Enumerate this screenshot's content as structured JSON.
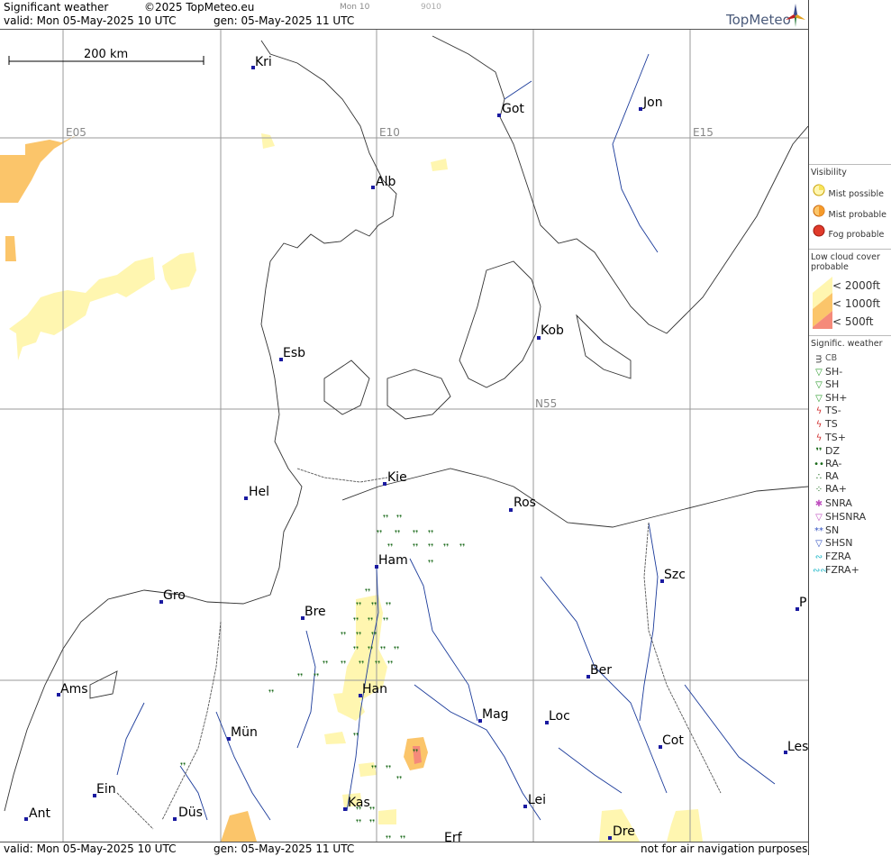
{
  "header": {
    "product": "Significant weather",
    "copyright": "©2025 TopMeteo.eu",
    "valid_line": "valid:  Mon  05-May-2025  10 UTC",
    "gen_line": "gen: 05-May-2025 11 UTC",
    "code_day": "Mon 10",
    "code_num": "9010",
    "brand": "TopMeteo"
  },
  "footer": {
    "valid_line": "valid:  Mon  05-May-2025  10 UTC",
    "gen_line": "gen: 05-May-2025 11 UTC",
    "disclaimer": "not for air navigation purposes"
  },
  "map": {
    "scale_label": "200 km",
    "grid_labels": [
      "E05",
      "E10",
      "E15",
      "N55"
    ],
    "cities": [
      "Kri",
      "Got",
      "Jon",
      "Alb",
      "Kob",
      "Esb",
      "Kie",
      "Hel",
      "Ros",
      "Ham",
      "Szc",
      "Gro",
      "Bre",
      "P",
      "Ber",
      "Ams",
      "Han",
      "Mag",
      "Loc",
      "Mün",
      "Cot",
      "Les",
      "Ein",
      "Kas",
      "Lei",
      "Ant",
      "Düs",
      "Dre",
      "Erf"
    ]
  },
  "legend": {
    "visibility": {
      "title": "Visibility",
      "items": [
        {
          "label": "Mist possible",
          "color": "#f7e35a"
        },
        {
          "label": "Mist probable",
          "color": "#f59a2a"
        },
        {
          "label": "Fog probable",
          "color": "#e03a2a"
        }
      ]
    },
    "low_cloud": {
      "title_line1": "Low cloud cover",
      "title_line2": "probable",
      "items": [
        {
          "label": "< 2000ft",
          "color": "#fff6b0"
        },
        {
          "label": "< 1000ft",
          "color": "#fbc56a"
        },
        {
          "label": "<   500ft",
          "color": "#f58a7a"
        }
      ]
    },
    "sigwx": {
      "title": "Signific. weather",
      "items": [
        {
          "label": "CB",
          "icon": "cb-icon",
          "color": "#333333"
        },
        {
          "label": "SH-",
          "icon": "shower-light-icon",
          "color": "#2a9a2a"
        },
        {
          "label": "SH",
          "icon": "shower-icon",
          "color": "#2a9a2a"
        },
        {
          "label": "SH+",
          "icon": "shower-heavy-icon",
          "color": "#2a9a2a"
        },
        {
          "label": "TS-",
          "icon": "thunderstorm-light-icon",
          "color": "#d23030"
        },
        {
          "label": "TS",
          "icon": "thunderstorm-icon",
          "color": "#d23030"
        },
        {
          "label": "TS+",
          "icon": "thunderstorm-heavy-icon",
          "color": "#d23030"
        },
        {
          "label": "DZ",
          "icon": "drizzle-icon",
          "color": "#1a6a1a"
        },
        {
          "label": "RA-",
          "icon": "rain-light-icon",
          "color": "#1a6a1a"
        },
        {
          "label": "RA",
          "icon": "rain-icon",
          "color": "#1a6a1a"
        },
        {
          "label": "RA+",
          "icon": "rain-heavy-icon",
          "color": "#1a6a1a"
        },
        {
          "label": "SNRA",
          "icon": "sleet-icon",
          "color": "#c050c0"
        },
        {
          "label": "SHSNRA",
          "icon": "sleet-shower-icon",
          "color": "#c050c0"
        },
        {
          "label": "SN",
          "icon": "snow-icon",
          "color": "#3050c0"
        },
        {
          "label": "SHSN",
          "icon": "snow-shower-icon",
          "color": "#3050c0"
        },
        {
          "label": "FZRA",
          "icon": "freezing-rain-icon",
          "color": "#20b8c8"
        },
        {
          "label": "FZRA+",
          "icon": "freezing-rain-heavy-icon",
          "color": "#20b8c8"
        }
      ]
    }
  }
}
